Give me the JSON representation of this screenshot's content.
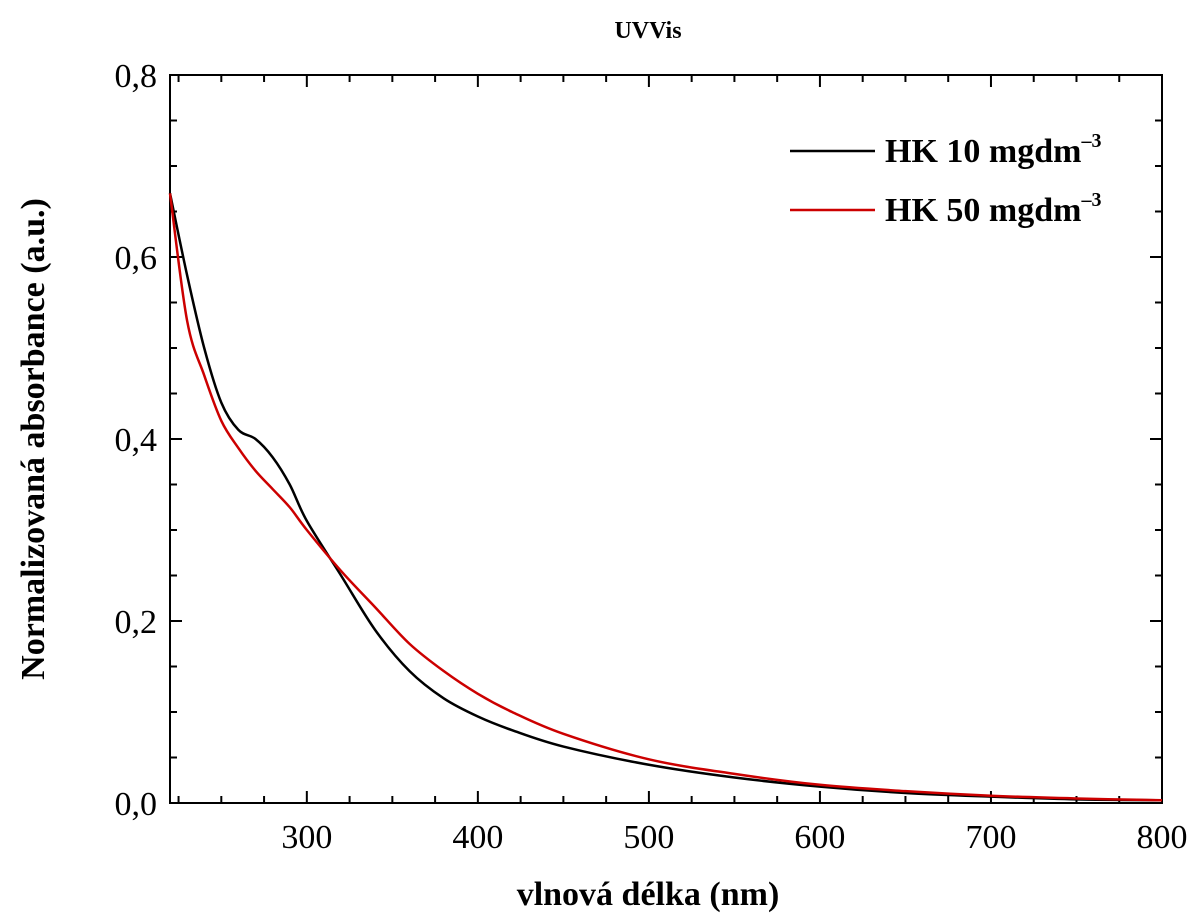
{
  "chart_data": {
    "type": "line",
    "title": "UVVis",
    "xlabel": "vlnová délka (nm)",
    "ylabel": "Normalizovaná absorbance (a.u.)",
    "xlim": [
      220,
      800
    ],
    "ylim": [
      0,
      0.8
    ],
    "x_ticks": [
      300,
      400,
      500,
      600,
      700,
      800
    ],
    "x_tick_labels": [
      "300",
      "400",
      "500",
      "600",
      "700",
      "800"
    ],
    "y_ticks": [
      0,
      0.2,
      0.4,
      0.6,
      0.8
    ],
    "y_tick_labels": [
      "0,0",
      "0,2",
      "0,4",
      "0,6",
      "0,8"
    ],
    "grid": false,
    "legend_position": "top-right",
    "series": [
      {
        "name": "HK 10 mgdm",
        "name_superscript": "–3",
        "color": "#000000",
        "x": [
          220,
          230,
          240,
          250,
          260,
          270,
          280,
          290,
          300,
          320,
          340,
          360,
          380,
          400,
          420,
          450,
          500,
          550,
          600,
          650,
          700,
          750,
          800
        ],
        "y": [
          0.67,
          0.58,
          0.5,
          0.44,
          0.41,
          0.4,
          0.38,
          0.35,
          0.31,
          0.25,
          0.19,
          0.145,
          0.115,
          0.095,
          0.08,
          0.062,
          0.042,
          0.028,
          0.018,
          0.011,
          0.007,
          0.004,
          0.003
        ]
      },
      {
        "name": "HK 50 mgdm",
        "name_superscript": "–3",
        "color": "#cc0000",
        "x": [
          220,
          230,
          240,
          250,
          260,
          270,
          280,
          290,
          300,
          320,
          340,
          360,
          380,
          400,
          420,
          450,
          500,
          550,
          600,
          650,
          700,
          750,
          800
        ],
        "y": [
          0.67,
          0.53,
          0.47,
          0.42,
          0.39,
          0.365,
          0.345,
          0.325,
          0.3,
          0.255,
          0.215,
          0.175,
          0.145,
          0.12,
          0.1,
          0.076,
          0.048,
          0.032,
          0.02,
          0.013,
          0.008,
          0.005,
          0.003
        ]
      }
    ]
  }
}
